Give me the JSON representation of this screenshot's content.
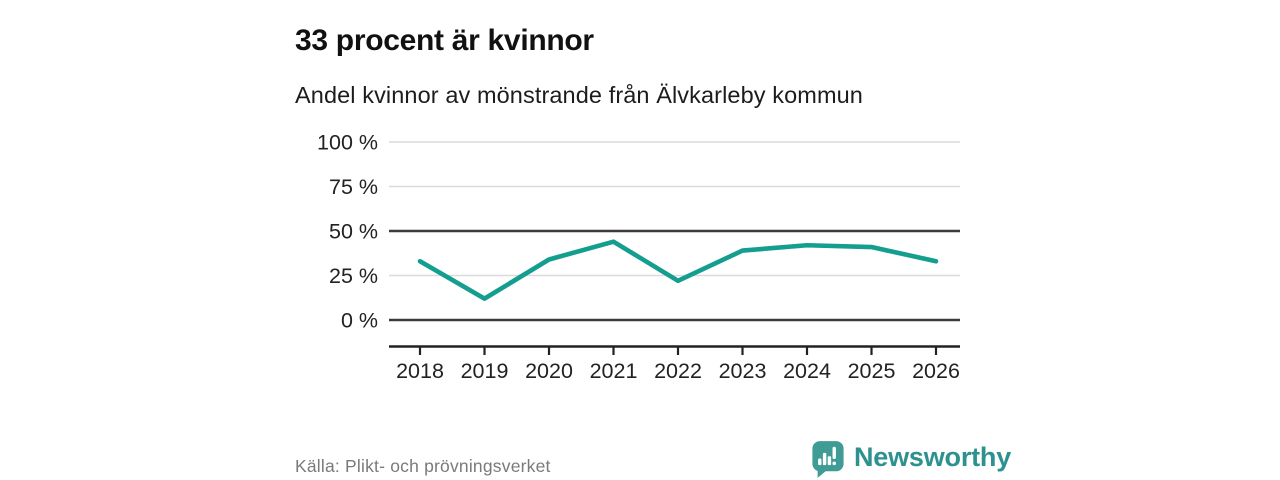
{
  "header": {
    "title": "33 procent är kvinnor",
    "subtitle": "Andel kvinnor av mönstrande från Älvkarleby kommun"
  },
  "chart_data": {
    "type": "line",
    "title": "33 procent är kvinnor",
    "subtitle": "Andel kvinnor av mönstrande från Älvkarleby kommun",
    "categories": [
      "2018",
      "2019",
      "2020",
      "2021",
      "2022",
      "2023",
      "2024",
      "2025",
      "2026"
    ],
    "series": [
      {
        "name": "Andel kvinnor av mönstrande",
        "values": [
          33,
          12,
          34,
          44,
          22,
          39,
          42,
          41,
          33
        ]
      }
    ],
    "unit": "%",
    "ylim": [
      0,
      100
    ],
    "yticks": [
      0,
      25,
      50,
      75,
      100
    ],
    "ytick_label_suffix": " %",
    "emphasized_gridlines": [
      0,
      50
    ],
    "grid": true,
    "legend": "none",
    "line_color": "#149e90"
  },
  "colors": {
    "accent_teal": "#149e90",
    "logo_bubble": "#3f9c95",
    "logo_wordmark": "#2d918e",
    "gridline_light": "#dbdbdb",
    "gridline_dark": "#3b3b3b",
    "axis": "#222222",
    "text_dark": "#1c1c1c",
    "text_muted": "#7a7a7a"
  },
  "footer": {
    "source": "Källa: Plikt- och prövningsverket",
    "brand": "Newsworthy"
  }
}
